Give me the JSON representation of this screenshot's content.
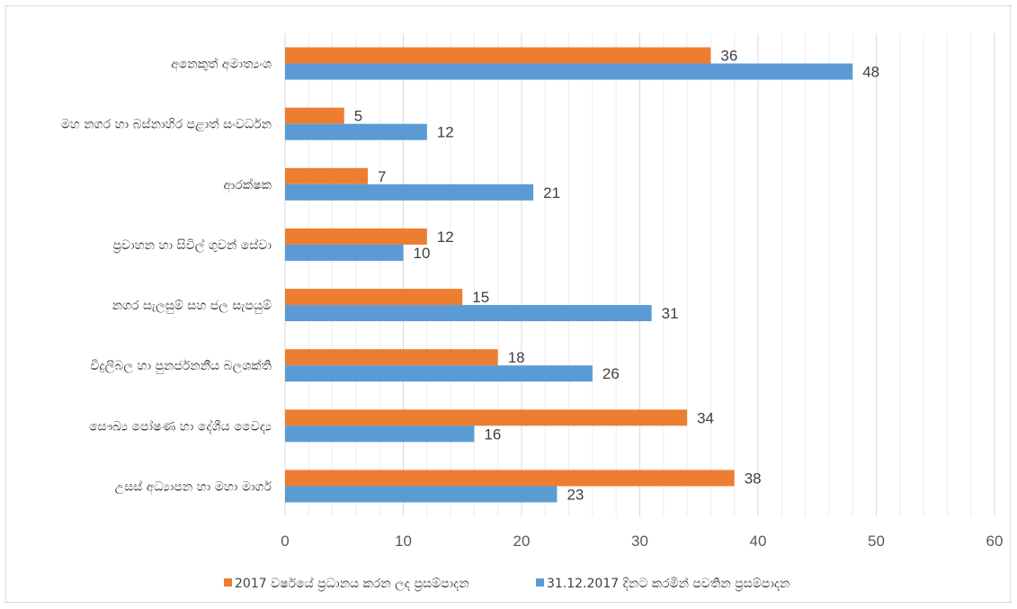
{
  "chart_data": {
    "type": "bar",
    "orientation": "horizontal",
    "categories": [
      "අනෙකුත් අමාත්‍යංශ",
      "මහ නගර හා බස්නාහිර පළාත් සංවර්ධන",
      "ආරක්ෂක",
      "ප්‍රවාහන හා සිවිල් ගුවන් සේවා",
      "නගර සැලසුම් සහ ජල සැපයුම්",
      "විදුලිබල හා පුනර්ජනනීය බලශක්ති",
      "සෞඛ්‍ය පෝෂණ හා දේශීය වෛද්‍ය",
      "උසස් අධ්‍යාපන හා මහා මාර්ග"
    ],
    "series": [
      {
        "name": "2017 වර්ෂයේ ප්‍රධානය කරන ලද ප්‍රසම්පාදන",
        "color": "#ED7D31",
        "values": [
          36,
          5,
          7,
          12,
          15,
          18,
          34,
          38
        ]
      },
      {
        "name": "31.12.2017 දිනට කරමින් පවතින ප්‍රසම්පාදන",
        "color": "#5B9BD5",
        "values": [
          48,
          12,
          21,
          10,
          31,
          26,
          16,
          23
        ]
      }
    ],
    "xlim": [
      0,
      60
    ],
    "xticks": [
      0,
      10,
      20,
      30,
      40,
      50,
      60
    ],
    "xtick_labels": [
      "0",
      "10",
      "20",
      "30",
      "40",
      "50",
      "60"
    ],
    "minor_gridlines": true,
    "grid": true,
    "legend_position": "bottom",
    "data_labels": true
  }
}
